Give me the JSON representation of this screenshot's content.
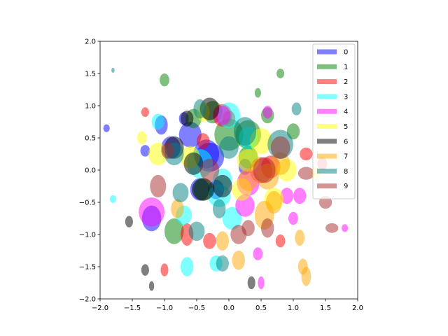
{
  "chart_data": {
    "type": "ellipse",
    "alpha": 0.5,
    "legend": "upper right",
    "xlim": [
      -2,
      2
    ],
    "ylim": [
      -2,
      2
    ],
    "xticks": [
      {
        "value": -2,
        "label": "−2.0"
      },
      {
        "value": -1.5,
        "label": "−1.5"
      },
      {
        "value": -1,
        "label": "−1.0"
      },
      {
        "value": -0.5,
        "label": "−0.5"
      },
      {
        "value": 0,
        "label": "0.0"
      },
      {
        "value": 0.5,
        "label": "0.5"
      },
      {
        "value": 1,
        "label": "1.0"
      },
      {
        "value": 1.5,
        "label": "1.5"
      },
      {
        "value": 2,
        "label": "2.0"
      }
    ],
    "yticks": [
      {
        "value": -2,
        "label": "−2.0"
      },
      {
        "value": -1.5,
        "label": "−1.5"
      },
      {
        "value": -1,
        "label": "−1.0"
      },
      {
        "value": -0.5,
        "label": "−0.5"
      },
      {
        "value": 0,
        "label": "0.0"
      },
      {
        "value": 0.5,
        "label": "0.5"
      },
      {
        "value": 1,
        "label": "1.0"
      },
      {
        "value": 1.5,
        "label": "1.5"
      },
      {
        "value": 2,
        "label": "2.0"
      }
    ],
    "series": [
      {
        "name": "0",
        "color": "#0000ff",
        "x": [
          -0.6,
          -0.3,
          -0.9,
          -1.05,
          -0.2,
          -1.2,
          -1.9,
          -0.45,
          -0.35,
          -1.3,
          0.25,
          -0.7
        ],
        "y": [
          0.55,
          0.2,
          0.35,
          0.7,
          -0.3,
          -0.75,
          0.65,
          -0.3,
          0.25,
          0.3,
          0.05,
          0.8
        ],
        "width": [
          0.35,
          0.45,
          0.3,
          0.2,
          0.25,
          0.3,
          0.1,
          0.3,
          0.4,
          0.15,
          0.2,
          0.15
        ],
        "height": [
          0.4,
          0.45,
          0.35,
          0.3,
          0.3,
          0.4,
          0.12,
          0.35,
          0.45,
          0.18,
          0.25,
          0.2
        ]
      },
      {
        "name": "1",
        "color": "#008000",
        "x": [
          -0.85,
          0.0,
          -0.25,
          0.3,
          0.8,
          1.0,
          -0.4,
          -0.55,
          0.6,
          0.3,
          -1.0,
          0.45
        ],
        "y": [
          -0.95,
          0.55,
          0.9,
          0.55,
          1.5,
          0.6,
          -0.3,
          0.8,
          0.85,
          0.2,
          1.4,
          1.2
        ],
        "width": [
          0.3,
          0.45,
          0.3,
          0.4,
          0.12,
          0.2,
          0.3,
          0.25,
          0.2,
          0.3,
          0.15,
          0.1
        ],
        "height": [
          0.4,
          0.5,
          0.35,
          0.45,
          0.15,
          0.25,
          0.35,
          0.3,
          0.25,
          0.35,
          0.2,
          0.15
        ]
      },
      {
        "name": "2",
        "color": "#ff0000",
        "x": [
          -0.65,
          -0.1,
          0.5,
          0.65,
          -1.0,
          1.2,
          0.8,
          -0.3,
          0.0,
          -1.3,
          1.45,
          -0.4
        ],
        "y": [
          -1.0,
          0.85,
          0.0,
          0.05,
          -1.55,
          0.25,
          -1.1,
          -1.1,
          0.8,
          0.9,
          0.1,
          0.45
        ],
        "width": [
          0.2,
          0.3,
          0.35,
          0.3,
          0.12,
          0.2,
          0.15,
          0.2,
          0.2,
          0.12,
          0.15,
          0.2
        ],
        "height": [
          0.35,
          0.35,
          0.4,
          0.35,
          0.2,
          0.2,
          0.2,
          0.25,
          0.25,
          0.15,
          0.2,
          0.25
        ]
      },
      {
        "name": "3",
        "color": "#00ffff",
        "x": [
          -0.65,
          0.0,
          -0.45,
          0.05,
          -0.15,
          -1.1,
          -0.2,
          -1.8,
          0.3,
          -0.7,
          -0.1
        ],
        "y": [
          -1.5,
          0.85,
          0.1,
          -0.75,
          -0.4,
          0.75,
          -1.45,
          -0.45,
          0.5,
          -0.7,
          -0.15
        ],
        "width": [
          0.2,
          0.35,
          0.4,
          0.3,
          0.35,
          0.2,
          0.2,
          0.1,
          0.3,
          0.25,
          0.3
        ],
        "height": [
          0.3,
          0.4,
          0.45,
          0.35,
          0.35,
          0.25,
          0.25,
          0.12,
          0.35,
          0.3,
          0.35
        ]
      },
      {
        "name": "4",
        "color": "#ff00ff",
        "x": [
          -1.2,
          0.3,
          0.45,
          0.9,
          1.0,
          0.5,
          0.6,
          1.8,
          -0.1,
          0.25,
          1.1
        ],
        "y": [
          -0.65,
          -0.2,
          -1.3,
          -0.4,
          -0.75,
          -1.75,
          0.9,
          -0.9,
          0.85,
          -0.55,
          -0.4
        ],
        "width": [
          0.4,
          0.35,
          0.15,
          0.2,
          0.15,
          0.1,
          0.15,
          0.1,
          0.25,
          0.3,
          0.2
        ],
        "height": [
          0.45,
          0.4,
          0.2,
          0.25,
          0.2,
          0.2,
          0.2,
          0.12,
          0.3,
          0.35,
          0.25
        ]
      },
      {
        "name": "5",
        "color": "#ffff00",
        "x": [
          -1.1,
          0.5,
          -0.6,
          0.7,
          -0.4,
          1.35,
          0.3,
          -1.35,
          0.9,
          0.2
        ],
        "y": [
          0.25,
          0.45,
          0.2,
          -0.45,
          0.9,
          -0.05,
          0.15,
          0.5,
          0.0,
          -0.3
        ],
        "width": [
          0.3,
          0.35,
          0.3,
          0.3,
          0.2,
          0.15,
          0.35,
          0.15,
          0.3,
          0.3
        ],
        "height": [
          0.35,
          0.4,
          0.35,
          0.35,
          0.3,
          0.2,
          0.35,
          0.2,
          0.35,
          0.35
        ]
      },
      {
        "name": "6",
        "color": "#000000",
        "x": [
          -0.85,
          -0.4,
          -0.55,
          -0.3,
          -0.1,
          -1.55,
          -1.3,
          0.35,
          -0.65,
          -1.2
        ],
        "y": [
          0.35,
          -0.3,
          0.1,
          0.95,
          -0.25,
          -0.8,
          -1.55,
          -1.75,
          0.8,
          -1.8
        ],
        "width": [
          0.3,
          0.35,
          0.3,
          0.3,
          0.3,
          0.12,
          0.12,
          0.12,
          0.2,
          0.08
        ],
        "height": [
          0.35,
          0.35,
          0.35,
          0.35,
          0.35,
          0.18,
          0.18,
          0.2,
          0.25,
          0.15
        ]
      },
      {
        "name": "7",
        "color": "#ffa500",
        "x": [
          0.55,
          0.6,
          1.1,
          0.8,
          -0.1,
          0.15,
          0.7,
          0.3,
          1.15,
          1.2,
          -0.8
        ],
        "y": [
          -0.7,
          -0.1,
          -1.05,
          0.1,
          -1.1,
          -1.4,
          -0.5,
          -0.15,
          -1.5,
          -1.65,
          -0.6
        ],
        "width": [
          0.3,
          0.35,
          0.15,
          0.3,
          0.2,
          0.2,
          0.25,
          0.3,
          0.15,
          0.15,
          0.2
        ],
        "height": [
          0.45,
          0.4,
          0.25,
          0.35,
          0.3,
          0.3,
          0.35,
          0.35,
          0.25,
          0.3,
          0.3
        ]
      },
      {
        "name": "8",
        "color": "#008080",
        "x": [
          -0.85,
          0.25,
          0.8,
          -0.5,
          -0.45,
          1.05,
          -0.15,
          -1.8,
          -0.75,
          -0.1,
          0.0
        ],
        "y": [
          0.25,
          0.6,
          0.4,
          -0.95,
          0.95,
          0.95,
          -0.6,
          1.55,
          -0.35,
          -1.45,
          0.35
        ],
        "width": [
          0.3,
          0.35,
          0.4,
          0.25,
          0.2,
          0.15,
          0.2,
          0.05,
          0.25,
          0.2,
          0.3
        ],
        "height": [
          0.35,
          0.45,
          0.45,
          0.3,
          0.3,
          0.2,
          0.3,
          0.08,
          0.3,
          0.25,
          0.35
        ]
      },
      {
        "name": "9",
        "color": "#a52a2a",
        "x": [
          -1.1,
          0.55,
          0.8,
          0.6,
          1.2,
          -0.95,
          -0.3,
          0.3,
          1.6,
          1.5,
          0.15
        ],
        "y": [
          -0.25,
          0.0,
          0.35,
          -0.9,
          -0.05,
          0.3,
          0.0,
          -0.9,
          -0.9,
          -0.5,
          -1.0
        ],
        "width": [
          0.25,
          0.35,
          0.3,
          0.2,
          0.25,
          0.2,
          0.3,
          0.2,
          0.2,
          0.2,
          0.25
        ],
        "height": [
          0.35,
          0.4,
          0.35,
          0.3,
          0.2,
          0.25,
          0.35,
          0.25,
          0.15,
          0.2,
          0.3
        ]
      }
    ]
  }
}
